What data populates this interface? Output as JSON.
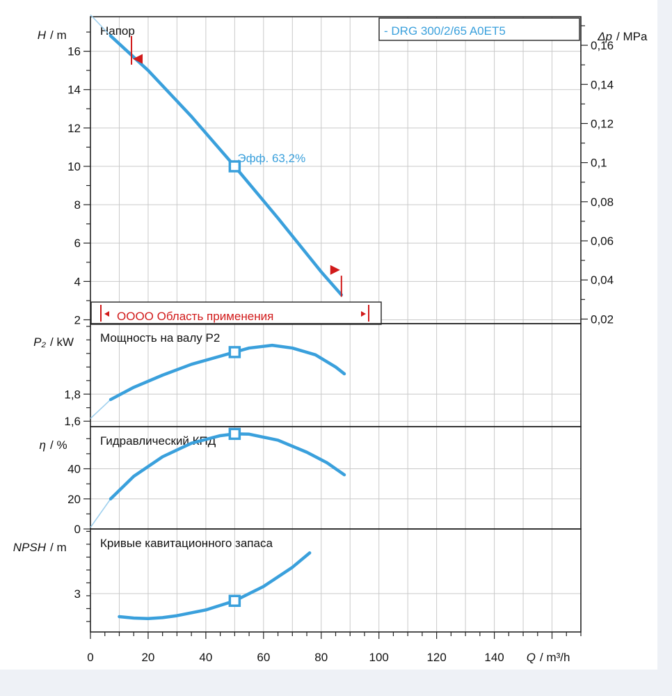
{
  "chart_data": {
    "type": "line",
    "model_label": "- DRG 300/2/65 A0ET5",
    "x_axis": {
      "label_var": "Q",
      "label_unit": "/ m³/h",
      "range": [
        0,
        170
      ],
      "ticks": [
        0,
        20,
        40,
        60,
        80,
        100,
        120,
        140
      ],
      "tick_labels": [
        "0",
        "20",
        "40",
        "60",
        "80",
        "100",
        "120",
        "140"
      ]
    },
    "series_color": "#3aa0dc",
    "panels": [
      {
        "key": "head",
        "title": "Напор",
        "ylabel_var": "H",
        "ylabel_unit": "/ m",
        "ylim": [
          1.8,
          17.8
        ],
        "yticks": [
          2,
          4,
          6,
          8,
          10,
          12,
          14,
          16
        ],
        "ytick_labels": [
          "2",
          "4",
          "6",
          "8",
          "10",
          "12",
          "14",
          "16"
        ],
        "right_axis": {
          "label_var": "Δp",
          "label_unit": "/ MPa",
          "ticks": [
            0.02,
            0.04,
            0.06,
            0.08,
            0.1,
            0.12,
            0.14,
            0.16
          ],
          "tick_labels": [
            "0,02",
            "0,04",
            "0,06",
            "0,08",
            "0,1",
            "0,12",
            "0,14",
            "0,16"
          ]
        },
        "curve": {
          "x": [
            7,
            20,
            35,
            50,
            65,
            80,
            87
          ],
          "y": [
            16.8,
            15.0,
            12.6,
            10.0,
            7.3,
            4.5,
            3.3
          ]
        },
        "extension": {
          "x": [
            0,
            7
          ],
          "y": [
            17.9,
            16.8
          ]
        },
        "duty_point": {
          "x": 50,
          "y": 10,
          "label": "Эфф.  63,2%"
        },
        "range_markers": [
          {
            "x": 7,
            "y": 15.6,
            "dir": "left"
          },
          {
            "x": 87,
            "y": 4.6,
            "dir": "right"
          }
        ],
        "legend_box": {
          "text": "OOOO Область применения"
        }
      },
      {
        "key": "power",
        "title": "Мощность на валу P2",
        "ylabel_var": "P₂",
        "ylabel_unit": "/ kW",
        "ylim": [
          1.56,
          2.32
        ],
        "yticks": [
          1.6,
          1.8
        ],
        "ytick_labels": [
          "1,6",
          "1,8"
        ],
        "curve": {
          "x": [
            7,
            15,
            25,
            35,
            45,
            50,
            55,
            63,
            70,
            78,
            85,
            88
          ],
          "y": [
            1.76,
            1.85,
            1.94,
            2.02,
            2.08,
            2.11,
            2.14,
            2.16,
            2.14,
            2.09,
            2.0,
            1.95
          ]
        },
        "extension": {
          "x": [
            0,
            7
          ],
          "y": [
            1.62,
            1.76
          ]
        },
        "duty_point": {
          "x": 50,
          "y": 2.11
        }
      },
      {
        "key": "efficiency",
        "title": "Гидравлический КПД",
        "ylabel_var": "η",
        "ylabel_unit": "/ %",
        "ylim": [
          0,
          68
        ],
        "yticks": [
          0,
          20,
          40
        ],
        "ytick_labels": [
          "0",
          "20",
          "40"
        ],
        "curve": {
          "x": [
            7,
            15,
            25,
            35,
            45,
            50,
            55,
            65,
            75,
            82,
            88
          ],
          "y": [
            20,
            35,
            48,
            57,
            62,
            63.2,
            63,
            59,
            51,
            44,
            36
          ]
        },
        "extension": {
          "x": [
            0,
            7
          ],
          "y": [
            1,
            20
          ]
        },
        "duty_point": {
          "x": 50,
          "y": 63.2
        }
      },
      {
        "key": "npsh",
        "title": "Кривые кавитационного запаса",
        "ylabel_var": "NPSH",
        "ylabel_unit": "/ m",
        "ylim": [
          2.2,
          4.35
        ],
        "yticks": [
          3
        ],
        "ytick_labels": [
          "3"
        ],
        "curve": {
          "x": [
            10,
            15,
            20,
            25,
            30,
            40,
            50,
            60,
            70,
            76
          ],
          "y": [
            2.52,
            2.49,
            2.48,
            2.5,
            2.54,
            2.66,
            2.85,
            3.15,
            3.55,
            3.85
          ]
        },
        "duty_point": {
          "x": 50,
          "y": 2.85
        }
      }
    ]
  }
}
